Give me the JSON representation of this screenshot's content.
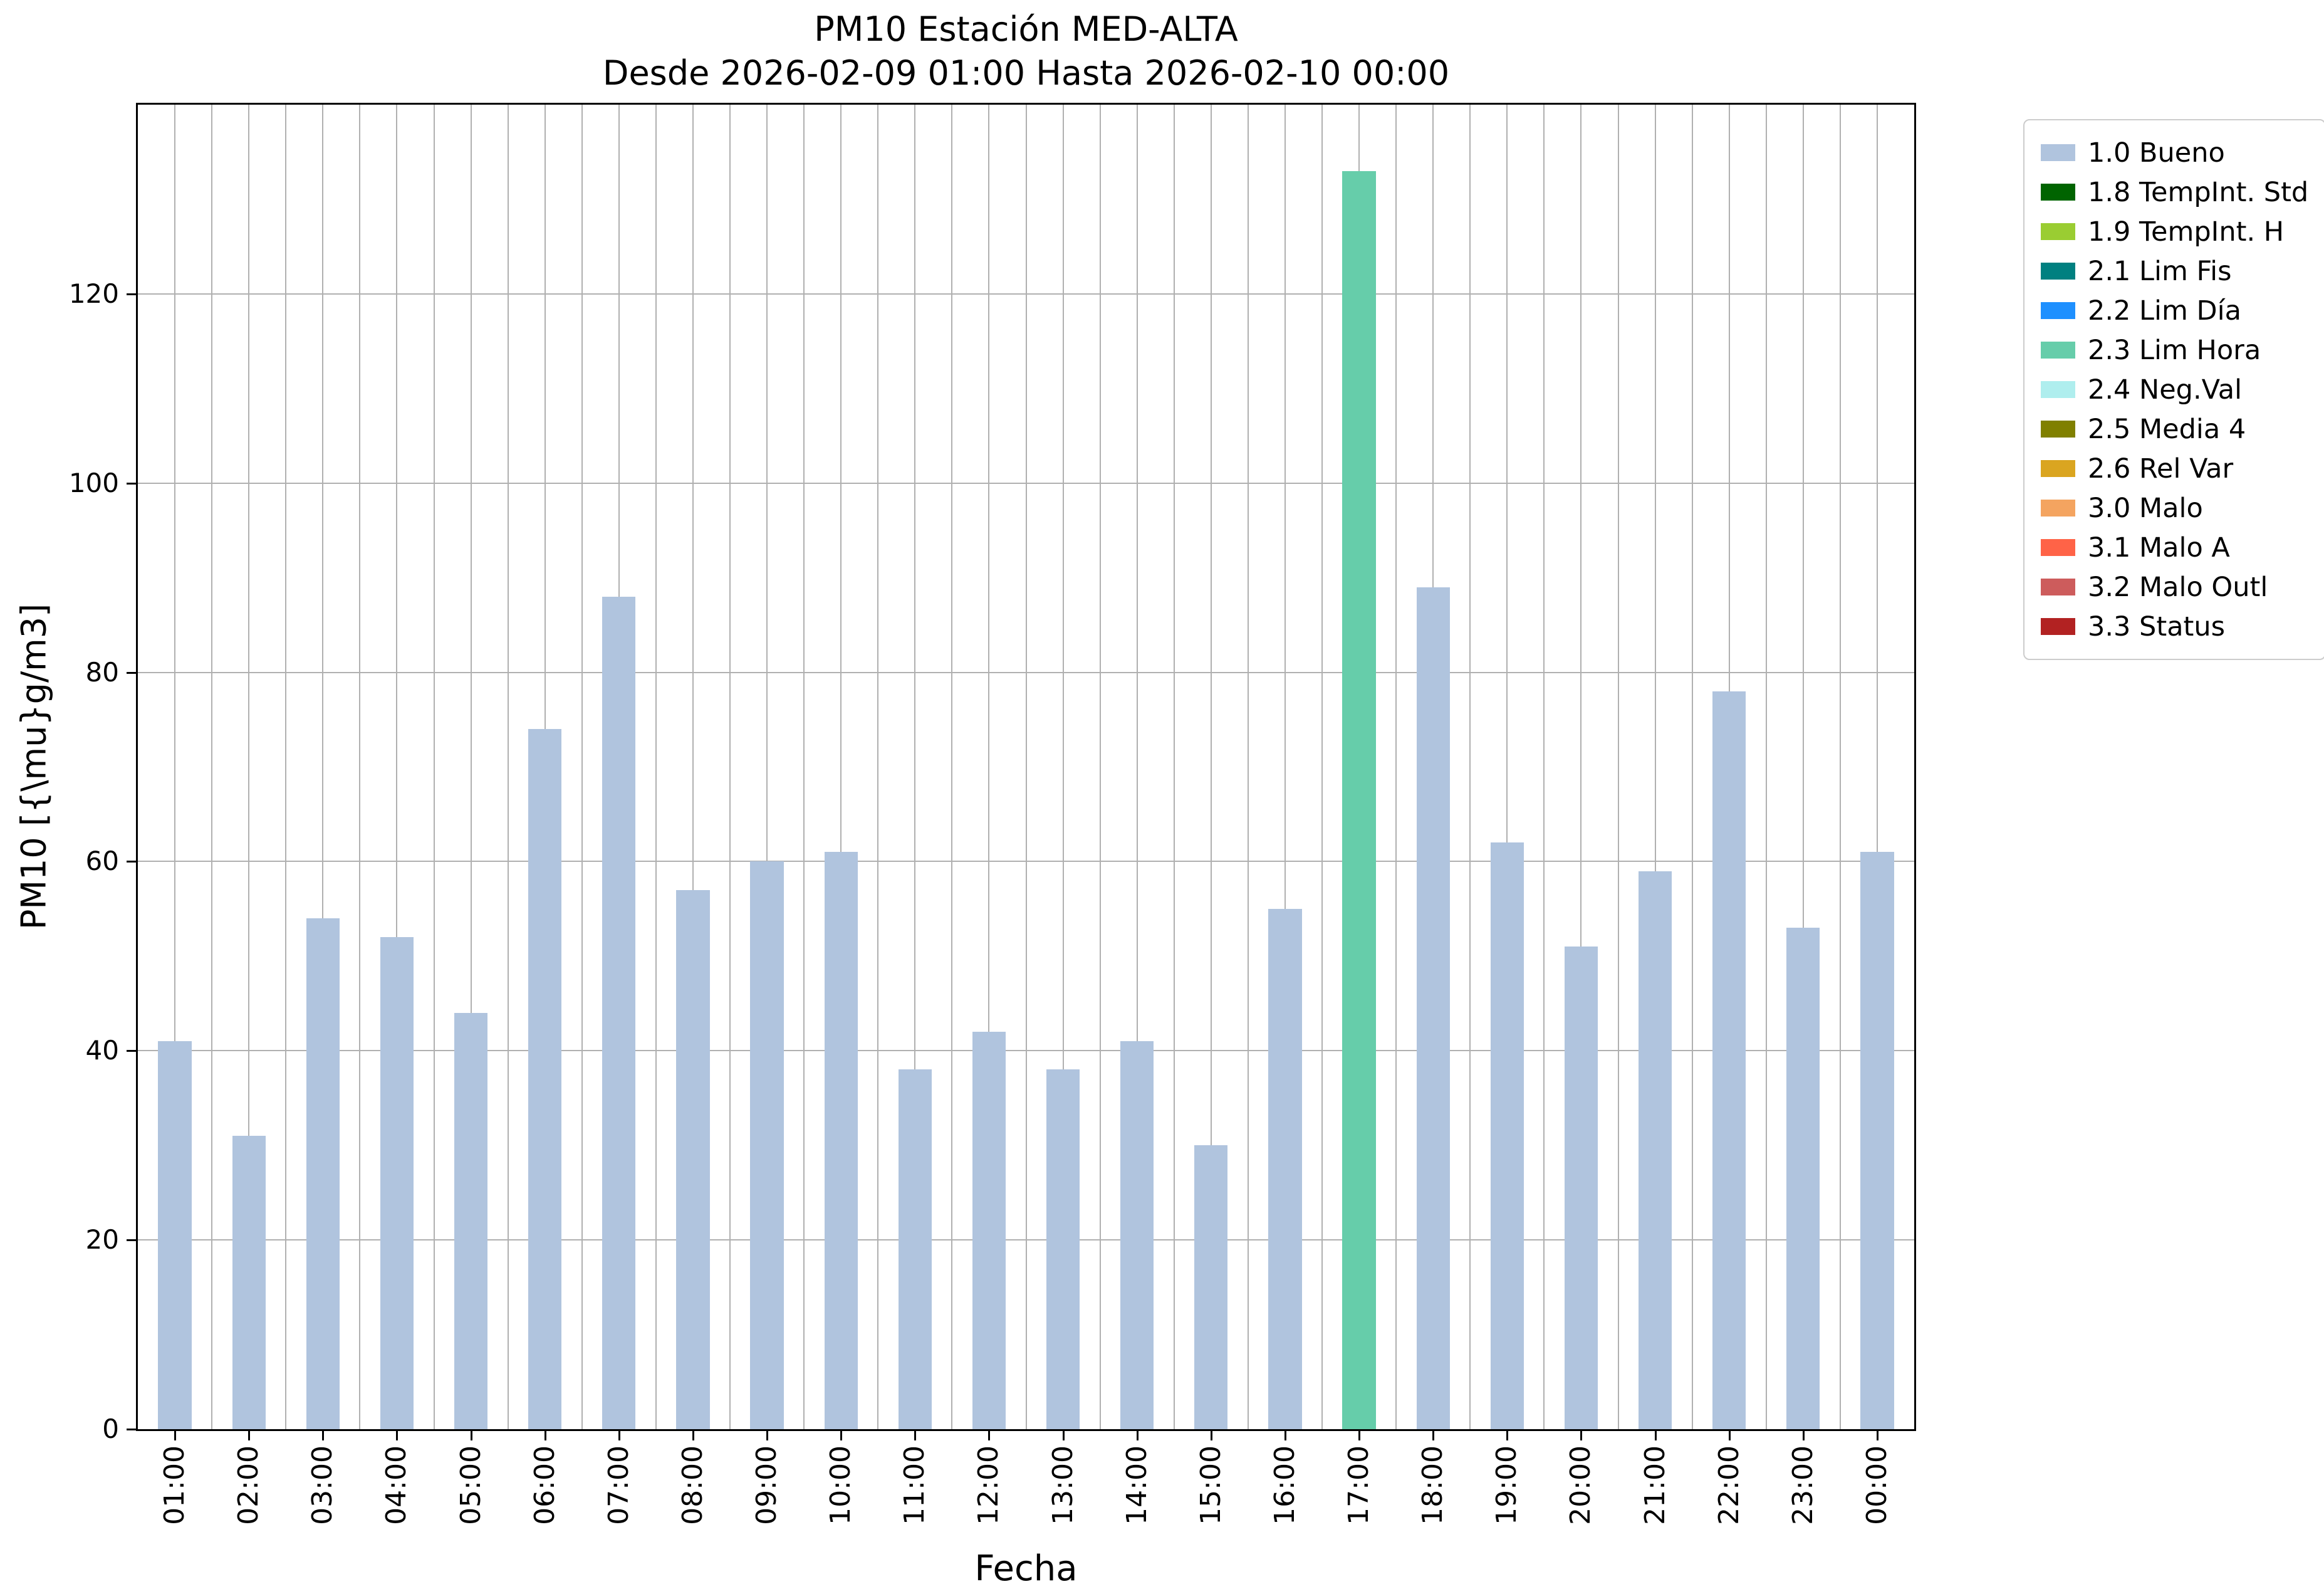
{
  "chart_data": {
    "type": "bar",
    "title": "PM10 Estación MED-ALTA",
    "subtitle": "Desde 2026-02-09 01:00 Hasta 2026-02-10 00:00",
    "xlabel": "Fecha",
    "ylabel": "PM10 [{\\mu}g/m3]",
    "categories": [
      "01:00",
      "02:00",
      "03:00",
      "04:00",
      "05:00",
      "06:00",
      "07:00",
      "08:00",
      "09:00",
      "10:00",
      "11:00",
      "12:00",
      "13:00",
      "14:00",
      "15:00",
      "16:00",
      "17:00",
      "18:00",
      "19:00",
      "20:00",
      "21:00",
      "22:00",
      "23:00",
      "00:00"
    ],
    "values": [
      41,
      31,
      54,
      52,
      44,
      74,
      88,
      57,
      60,
      61,
      38,
      42,
      38,
      41,
      30,
      55,
      133,
      89,
      62,
      51,
      59,
      78,
      53,
      61
    ],
    "bar_colors": [
      "#b0c4de",
      "#b0c4de",
      "#b0c4de",
      "#b0c4de",
      "#b0c4de",
      "#b0c4de",
      "#b0c4de",
      "#b0c4de",
      "#b0c4de",
      "#b0c4de",
      "#b0c4de",
      "#b0c4de",
      "#b0c4de",
      "#b0c4de",
      "#b0c4de",
      "#b0c4de",
      "#66cdaa",
      "#b0c4de",
      "#b0c4de",
      "#b0c4de",
      "#b0c4de",
      "#b0c4de",
      "#b0c4de",
      "#b0c4de"
    ],
    "default_bar_color": "#b0c4de",
    "highlight": {
      "index": 16,
      "category": "17:00",
      "value": 133,
      "color": "#66cdaa",
      "flag": "2.3 Lim Hora"
    },
    "yticks": [
      0,
      20,
      40,
      60,
      80,
      100,
      120
    ],
    "ylim": [
      0,
      140
    ],
    "grid": true,
    "bar_width_fraction": 0.45,
    "legend_position": "outside-right",
    "legend": [
      {
        "label": "1.0 Bueno",
        "color": "#b0c4de"
      },
      {
        "label": "1.8 TempInt. Std",
        "color": "#006400"
      },
      {
        "label": "1.9 TempInt. H",
        "color": "#9acd32"
      },
      {
        "label": "2.1 Lim Fis",
        "color": "#008080"
      },
      {
        "label": "2.2 Lim Día",
        "color": "#1e90ff"
      },
      {
        "label": "2.3 Lim Hora",
        "color": "#66cdaa"
      },
      {
        "label": "2.4 Neg.Val",
        "color": "#afeeee"
      },
      {
        "label": "2.5 Media 4",
        "color": "#808000"
      },
      {
        "label": "2.6 Rel Var",
        "color": "#daa520"
      },
      {
        "label": "3.0 Malo",
        "color": "#f4a460"
      },
      {
        "label": "3.1 Malo A",
        "color": "#ff6347"
      },
      {
        "label": "3.2 Malo Outl",
        "color": "#cd5c5c"
      },
      {
        "label": "3.3 Status",
        "color": "#b22222"
      }
    ],
    "grid_color": "#b0b0b0",
    "axis_color": "#000000"
  }
}
